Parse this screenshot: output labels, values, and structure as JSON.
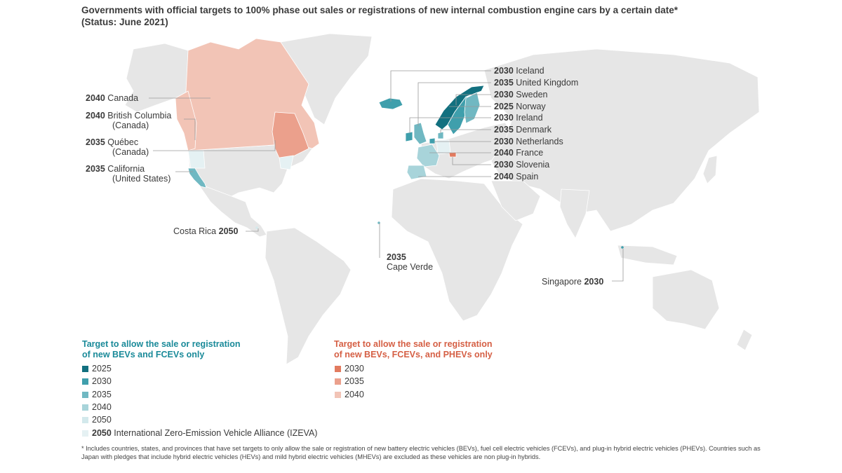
{
  "title_line1": "Governments with official targets to 100% phase out sales or registrations of new internal combustion engine cars by a certain date*",
  "title_line2": "(Status: June 2021)",
  "colors": {
    "land": "#e6e6e6",
    "teal_2025": "#12707f",
    "teal_2030": "#3f9fac",
    "teal_2035": "#70b8c2",
    "teal_2040": "#a8d4da",
    "teal_2050": "#d3e9ec",
    "izeva_2050": "#e5f1f3",
    "coral_2030": "#e27b5f",
    "coral_2035": "#eba08c",
    "coral_2040": "#f2c4b6",
    "leader": "#9a9a9a"
  },
  "labels_left": [
    {
      "year": "2040",
      "name": "Canada",
      "sub": ""
    },
    {
      "year": "2040",
      "name": "British Columbia",
      "sub": "(Canada)"
    },
    {
      "year": "2035",
      "name": "Québec",
      "sub": "(Canada)"
    },
    {
      "year": "2035",
      "name": "California",
      "sub": "(United States)"
    }
  ],
  "labels_right": [
    {
      "year": "2030",
      "name": "Iceland"
    },
    {
      "year": "2035",
      "name": "United Kingdom"
    },
    {
      "year": "2030",
      "name": "Sweden"
    },
    {
      "year": "2025",
      "name": "Norway"
    },
    {
      "year": "2030",
      "name": "Ireland"
    },
    {
      "year": "2035",
      "name": "Denmark"
    },
    {
      "year": "2030",
      "name": "Netherlands"
    },
    {
      "year": "2040",
      "name": "France"
    },
    {
      "year": "2030",
      "name": "Slovenia"
    },
    {
      "year": "2040",
      "name": "Spain"
    }
  ],
  "costa_rica": {
    "name": "Costa Rica",
    "year": "2050"
  },
  "cape_verde": {
    "year": "2035",
    "name": "Cape Verde"
  },
  "singapore": {
    "name": "Singapore",
    "year": "2030"
  },
  "legend": {
    "teal_heading_1": "Target to allow the sale or registration",
    "teal_heading_2": "of new BEVs and FCEVs only",
    "coral_heading_1": "Target to allow the sale or registration",
    "coral_heading_2": "of new BEVs, FCEVs, and PHEVs only",
    "teal_items": [
      "2025",
      "2030",
      "2035",
      "2040",
      "2050"
    ],
    "izeva_year": "2050",
    "izeva_label": "International Zero-Emission Vehicle Alliance (IZEVA)",
    "coral_items": [
      "2030",
      "2035",
      "2040"
    ]
  },
  "footnote": "* Includes countries, states, and provinces that have set targets to only allow the sale or registration of new battery electric vehicles (BEVs), fuel cell electric vehicles (FCEVs), and plug-in hybrid electric vehicles (PHEVs). Countries such as Japan with pledges that include hybrid electric vehicles (HEVs) and mild hybrid electric vehicles (MHEVs) are excluded as these vehicles are non plug-in hybrids."
}
